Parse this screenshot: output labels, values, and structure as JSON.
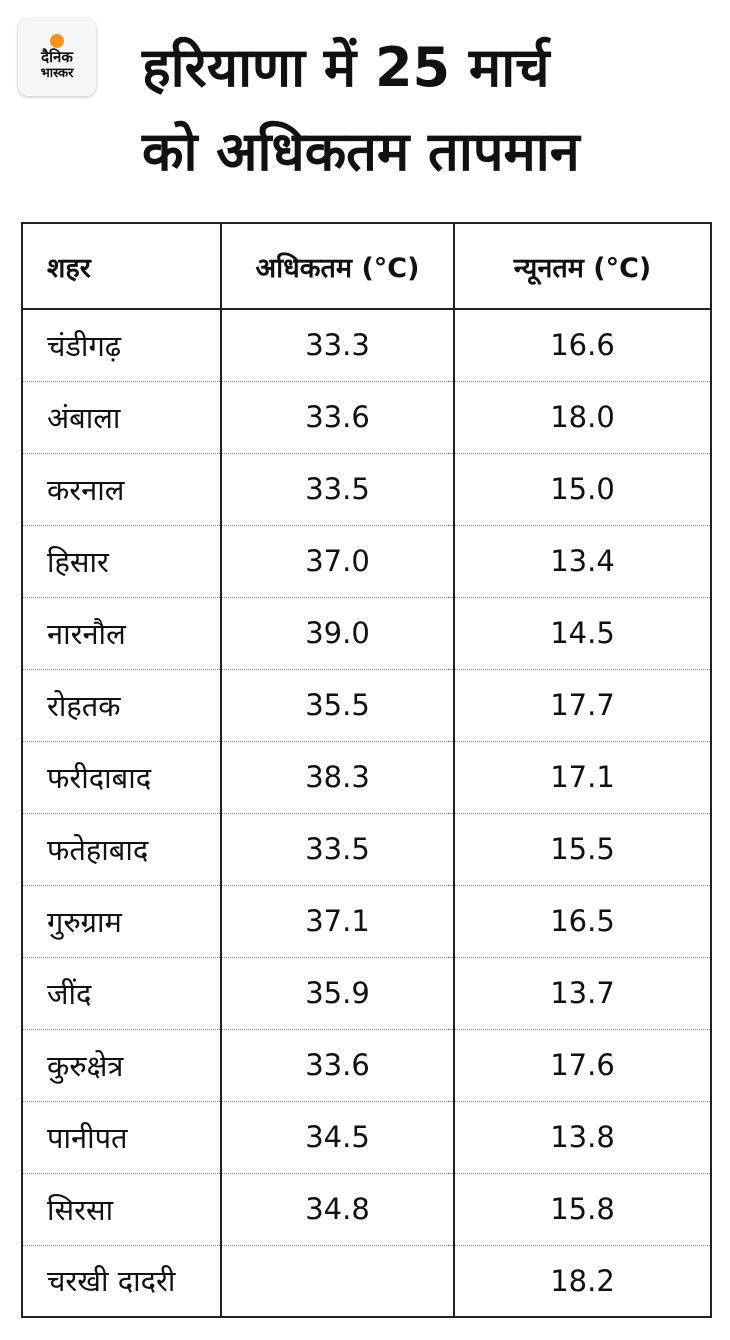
{
  "logo": {
    "line1": "दैनिक",
    "line2": "भास्कर"
  },
  "title": {
    "line1": "हरियाणा में 25 मार्च",
    "line2": "को अधिकतम तापमान"
  },
  "table": {
    "headers": [
      "शहर",
      "अधिकतम (°C)",
      "न्यूनतम (°C)"
    ],
    "rows": [
      {
        "city": "चंडीगढ़",
        "max": "33.3",
        "min": "16.6"
      },
      {
        "city": "अंबाला",
        "max": "33.6",
        "min": "18.0"
      },
      {
        "city": "करनाल",
        "max": "33.5",
        "min": "15.0"
      },
      {
        "city": "हिसार",
        "max": "37.0",
        "min": "13.4"
      },
      {
        "city": "नारनौल",
        "max": "39.0",
        "min": "14.5"
      },
      {
        "city": "रोहतक",
        "max": "35.5",
        "min": "17.7"
      },
      {
        "city": "फरीदाबाद",
        "max": "38.3",
        "min": "17.1"
      },
      {
        "city": "फतेहाबाद",
        "max": "33.5",
        "min": "15.5"
      },
      {
        "city": "गुरुग्राम",
        "max": "37.1",
        "min": "16.5"
      },
      {
        "city": "जींद",
        "max": "35.9",
        "min": "13.7"
      },
      {
        "city": "कुरुक्षेत्र",
        "max": "33.6",
        "min": "17.6"
      },
      {
        "city": "पानीपत",
        "max": "34.5",
        "min": "13.8"
      },
      {
        "city": "सिरसा",
        "max": "34.8",
        "min": "15.8"
      },
      {
        "city": "चरखी दादरी",
        "max": "",
        "min": "18.2"
      }
    ]
  },
  "colors": {
    "logo_dot": "#f7941d",
    "text": "#111111",
    "border": "#222222"
  }
}
